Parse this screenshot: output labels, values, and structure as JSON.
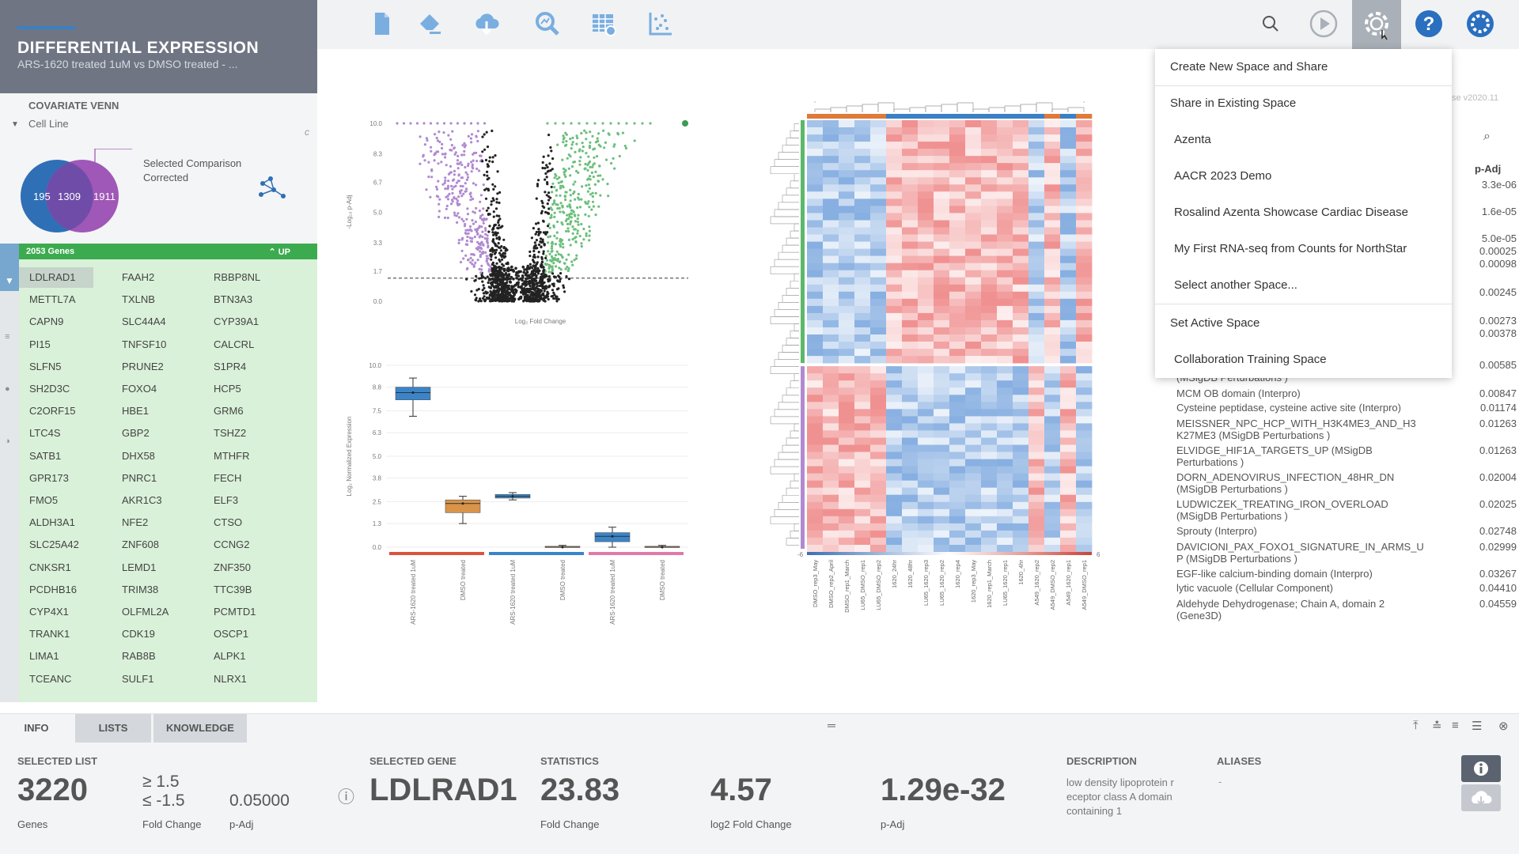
{
  "left": {
    "title": "DIFFERENTIAL EXPRESSION",
    "subtitle": "ARS-1620 treated 1uM vs DMSO treated - ...",
    "venn": {
      "label": "COVARIATE VENN",
      "dropdown": "Cell Line",
      "left_count": "195",
      "mid_count": "1309",
      "right_count": "1911",
      "selected_line1": "Selected Comparison",
      "selected_line2": "Corrected",
      "left_color": "#2f6fb6",
      "right_color": "#9a4fb3"
    },
    "gene_list": {
      "count_label": "2053 Genes",
      "direction": "UP",
      "genes": [
        [
          "LDLRAD1",
          "FAAH2",
          "RBBP8NL"
        ],
        [
          "METTL7A",
          "TXLNB",
          "BTN3A3"
        ],
        [
          "CAPN9",
          "SLC44A4",
          "CYP39A1"
        ],
        [
          "PI15",
          "TNFSF10",
          "CALCRL"
        ],
        [
          "SLFN5",
          "PRUNE2",
          "S1PR4"
        ],
        [
          "SH2D3C",
          "FOXO4",
          "HCP5"
        ],
        [
          "C2ORF15",
          "HBE1",
          "GRM6"
        ],
        [
          "LTC4S",
          "GBP2",
          "TSHZ2"
        ],
        [
          "SATB1",
          "DHX58",
          "MTHFR"
        ],
        [
          "GPR173",
          "PNRC1",
          "FECH"
        ],
        [
          "FMO5",
          "AKR1C3",
          "ELF3"
        ],
        [
          "ALDH3A1",
          "NFE2",
          "CTSO"
        ],
        [
          "SLC25A42",
          "ZNF608",
          "CCNG2"
        ],
        [
          "CNKSR1",
          "LEMD1",
          "ZNF350"
        ],
        [
          "PCDHB16",
          "TRIM38",
          "TTC39B"
        ],
        [
          "CYP4X1",
          "OLFML2A",
          "PCMTD1"
        ],
        [
          "TRANK1",
          "CDK19",
          "OSCP1"
        ],
        [
          "LIMA1",
          "RAB8B",
          "ALPK1"
        ],
        [
          "TCEANC",
          "SULF1",
          "NLRX1"
        ]
      ]
    }
  },
  "toolbar": {
    "icons": [
      "document-icon",
      "eraser-icon",
      "cloud-download-icon",
      "analysis-search-icon",
      "table-settings-icon",
      "scatter-plot-icon"
    ],
    "right_icons": [
      "search-icon",
      "play-icon",
      "gear-icon",
      "help-icon",
      "brand-logo-icon"
    ]
  },
  "volcano": {
    "y_ticks": [
      "10.0",
      "8.3",
      "6.7",
      "5.0",
      "3.3",
      "1.7",
      "0.0"
    ],
    "ylabel": "-Log₁₀ p-Adj",
    "xlabel": "Log₂ Fold Change"
  },
  "chart_data": [
    {
      "type": "scatter",
      "title": "",
      "xlabel": "Log₂ Fold Change",
      "ylabel": "-Log₁₀ p-Adj",
      "ylim": [
        0,
        10
      ],
      "threshold_y": 1.3,
      "series": [
        {
          "name": "",
          "color": "#b08ad1"
        },
        {
          "name": "",
          "color": "#6cbf7c"
        },
        {
          "name": "",
          "color": "#222222"
        }
      ]
    },
    {
      "type": "box",
      "xlabel": "",
      "ylabel": "Log₂ Normalized Expression",
      "ylim": [
        0,
        10
      ],
      "y_ticks": [
        "10.0",
        "8.8",
        "7.5",
        "6.3",
        "5.0",
        "3.8",
        "2.5",
        "1.3",
        "0.0"
      ],
      "categories": [
        "ARS-1620 treated 1uM",
        "DMSO treated",
        "ARS-1620 treated 1uM",
        "DMSO treated",
        "ARS-1620 treated 1uM",
        "DMSO treated"
      ],
      "boxes": [
        {
          "min": 7.2,
          "q1": 8.1,
          "median": 8.5,
          "q3": 8.8,
          "max": 9.3,
          "color": "#3a85c9"
        },
        {
          "min": 1.3,
          "q1": 1.9,
          "median": 2.4,
          "q3": 2.6,
          "max": 2.8,
          "color": "#d9944a"
        },
        {
          "min": 2.6,
          "q1": 2.7,
          "median": 2.8,
          "q3": 2.9,
          "max": 3.0,
          "color": "#3a85c9"
        },
        {
          "min": 0.0,
          "q1": 0.0,
          "median": 0.0,
          "q3": 0.05,
          "max": 0.1,
          "color": "#d9944a"
        },
        {
          "min": 0.0,
          "q1": 0.3,
          "median": 0.6,
          "q3": 0.8,
          "max": 1.1,
          "color": "#3a85c9"
        },
        {
          "min": 0.0,
          "q1": 0.0,
          "median": 0.0,
          "q3": 0.05,
          "max": 0.1,
          "color": "#d9944a"
        }
      ],
      "group_colors": [
        "#d9543f",
        "#3a85c9",
        "#e07aa8"
      ]
    },
    {
      "type": "heatmap",
      "scale_min": "-6",
      "scale_max": "6",
      "columns": [
        "DMSO_rep3_May",
        "DMSO_rep2_April",
        "DMSO_rep1_March",
        "LU65_DMSO_rep1",
        "LU65_DMSO_rep2",
        "1620_24hr",
        "1620_48hr",
        "LU65_1620_rep3",
        "LU65_1620_rep2",
        "1620_rep4",
        "1620_rep3_May",
        "1620_rep1_March",
        "LU65_1620_rep1",
        "1620_4hr",
        "A549_1620_rep2",
        "A549_DMSO_rep2",
        "A549_1620_rep1",
        "A549_DMSO_rep1"
      ]
    }
  ],
  "right_table": {
    "version": "se v2020.11",
    "col_padj": "p-Adj",
    "top_values": [
      "3.3e-06",
      "1.6e-05",
      "5.0e-05",
      "0.00025",
      "0.00098",
      "0.00245",
      "0.00273",
      "0.00378",
      "0.00585"
    ],
    "partial_row": "(MSigDB Perturbations )",
    "rows": [
      {
        "name": "MCM OB domain (Interpro)",
        "val": "0.00847"
      },
      {
        "name": "Cysteine peptidase, cysteine active site (Interpro)",
        "val": "0.01174"
      },
      {
        "name": "MEISSNER_NPC_HCP_WITH_H3K4ME3_AND_H3 K27ME3 (MSigDB Perturbations )",
        "val": "0.01263"
      },
      {
        "name": "ELVIDGE_HIF1A_TARGETS_UP (MSigDB Perturbations )",
        "val": "0.01263"
      },
      {
        "name": "DORN_ADENOVIRUS_INFECTION_48HR_DN (MSigDB Perturbations )",
        "val": "0.02004"
      },
      {
        "name": "LUDWICZEK_TREATING_IRON_OVERLOAD (MSigDB Perturbations )",
        "val": "0.02025"
      },
      {
        "name": "Sprouty (Interpro)",
        "val": "0.02748"
      },
      {
        "name": "DAVICIONI_PAX_FOXO1_SIGNATURE_IN_ARMS_U P (MSigDB Perturbations )",
        "val": "0.02999"
      },
      {
        "name": "EGF-like calcium-binding domain (Interpro)",
        "val": "0.03267"
      },
      {
        "name": "lytic vacuole (Cellular Component)",
        "val": "0.04410"
      },
      {
        "name": "Aldehyde Dehydrogenase; Chain A, domain 2 (Gene3D)",
        "val": "0.04559"
      }
    ]
  },
  "share_menu": {
    "items": [
      {
        "label": "Create New Space and Share",
        "indent": false
      },
      {
        "label": "Share in Existing Space",
        "indent": false
      },
      {
        "label": "Azenta",
        "indent": true
      },
      {
        "label": "AACR 2023 Demo",
        "indent": true
      },
      {
        "label": "Rosalind Azenta Showcase Cardiac Disease",
        "indent": true
      },
      {
        "label": "My First RNA-seq from Counts for NorthStar",
        "indent": true
      },
      {
        "label": "Select another Space...",
        "indent": true
      },
      {
        "label": "Set Active Space",
        "indent": false
      },
      {
        "label": "Collaboration Training Space",
        "indent": true
      }
    ]
  },
  "bottom": {
    "tabs": [
      "INFO",
      "LISTS",
      "KNOWLEDGE"
    ],
    "selected_list_label": "SELECTED LIST",
    "selected_list_count": "3220",
    "genes_label": "Genes",
    "fc_up": "≥  1.5",
    "fc_down": "≤  -1.5",
    "fc_label": "Fold Change",
    "padj_value": "0.05000",
    "padj_label": "p-Adj",
    "selected_gene_label": "SELECTED GENE",
    "selected_gene": "LDLRAD1",
    "statistics_label": "STATISTICS",
    "fold_change": "23.83",
    "fold_change_label": "Fold Change",
    "log2fc": "4.57",
    "log2fc_label": "log2 Fold Change",
    "padj": "1.29e-32",
    "padj_label2": "p-Adj",
    "description_label": "DESCRIPTION",
    "description": "low density lipoprotein r eceptor class A domain containing 1",
    "aliases_label": "ALIASES",
    "aliases": "-"
  }
}
